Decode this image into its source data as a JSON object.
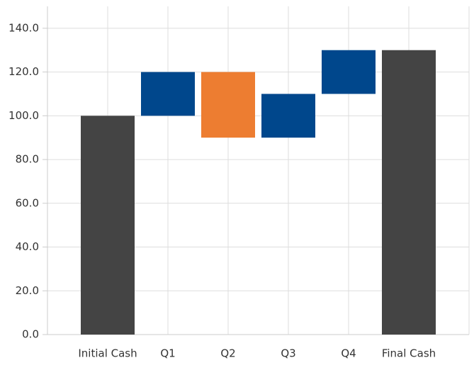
{
  "chart_data": {
    "type": "waterfall",
    "categories": [
      "Initial Cash",
      "Q1",
      "Q2",
      "Q3",
      "Q4",
      "Final Cash"
    ],
    "values": [
      100,
      20,
      -30,
      20,
      20,
      130
    ],
    "is_total": [
      true,
      false,
      false,
      false,
      false,
      true
    ],
    "colors": {
      "total": "#444444",
      "increase": "#00478c",
      "decrease": "#ed7d31"
    },
    "ylim": [
      0,
      150
    ],
    "yticks": [
      {
        "value": 0,
        "label": "0.0"
      },
      {
        "value": 20,
        "label": "20.0"
      },
      {
        "value": 40,
        "label": "40.0"
      },
      {
        "value": 60,
        "label": "60.0"
      },
      {
        "value": 80,
        "label": "80.0"
      },
      {
        "value": 100,
        "label": "100.0"
      },
      {
        "value": 120,
        "label": "120.0"
      },
      {
        "value": 140,
        "label": "140.0"
      }
    ],
    "grid": true
  }
}
